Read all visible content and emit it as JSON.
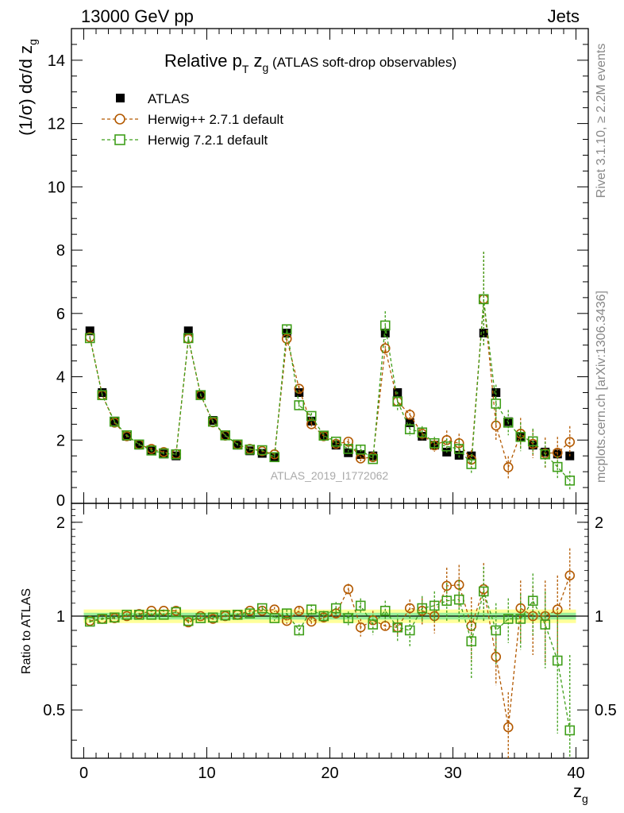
{
  "header": {
    "left": "13000 GeV pp",
    "right": "Jets"
  },
  "side_labels": {
    "rivet": "Rivet 3.1.10, ≥ 2.2M events",
    "mcplots": "mcplots.cern.ch [arXiv:1306.3436]"
  },
  "chart_data": {
    "type": "scatter",
    "title": {
      "main": "Relative p",
      "sub": "T",
      "mid": " z",
      "sub2": "g",
      "rest": " (ATLAS soft-drop observables)"
    },
    "watermark": "ATLAS_2019_I1772062",
    "xlabel": {
      "main": "z",
      "sub": "g"
    },
    "ylabel": {
      "pre": "(1/σ) dσ/d z",
      "sub": "g"
    },
    "ratio_ylabel": "Ratio to ATLAS",
    "xlim": [
      -1,
      41
    ],
    "ylim": [
      0,
      15
    ],
    "ratio_ylim": [
      0.35,
      2.3
    ],
    "x_ticks": [
      0,
      10,
      20,
      30,
      40
    ],
    "y_ticks": [
      0,
      2,
      4,
      6,
      8,
      10,
      12,
      14
    ],
    "ratio_ticks": [
      0.5,
      1,
      2
    ],
    "legend_position": "top-left",
    "legend": [
      {
        "label": "ATLAS",
        "marker": "filled-square",
        "color": "#000000"
      },
      {
        "label": "Herwig++ 2.7.1 default",
        "marker": "open-circle",
        "color": "#b35900"
      },
      {
        "label": "Herwig 7.2.1 default",
        "marker": "open-square",
        "color": "#3f9f1a"
      }
    ],
    "colors": {
      "atlas": "#000000",
      "herwigpp": "#b35900",
      "herwig7": "#3f9f1a",
      "band_outer": "#ffff99",
      "band_inner": "#99ee99"
    },
    "x": [
      0.5,
      1.5,
      2.5,
      3.5,
      4.5,
      5.5,
      6.5,
      7.5,
      8.5,
      9.5,
      10.5,
      11.5,
      12.5,
      13.5,
      14.5,
      15.5,
      16.5,
      17.5,
      18.5,
      19.5,
      20.5,
      21.5,
      22.5,
      23.5,
      24.5,
      25.5,
      26.5,
      27.5,
      28.5,
      29.5,
      30.5,
      31.5,
      32.5,
      33.5,
      34.5,
      35.5,
      36.5,
      37.5,
      38.5,
      39.5
    ],
    "series": [
      {
        "name": "ATLAS",
        "y": [
          5.45,
          3.5,
          2.6,
          2.12,
          1.84,
          1.66,
          1.56,
          1.5,
          5.45,
          3.42,
          2.62,
          2.14,
          1.84,
          1.66,
          1.58,
          1.48,
          5.38,
          3.5,
          2.6,
          2.14,
          1.84,
          1.6,
          1.54,
          1.5,
          5.38,
          3.5,
          2.55,
          2.12,
          1.84,
          1.62,
          1.52,
          1.5,
          5.38,
          3.5,
          2.58,
          2.1,
          1.84,
          1.62,
          1.56,
          1.5
        ],
        "yerr": [
          0.06,
          0.04,
          0.04,
          0.04,
          0.03,
          0.03,
          0.03,
          0.03,
          0.06,
          0.05,
          0.04,
          0.04,
          0.03,
          0.03,
          0.03,
          0.03,
          0.07,
          0.06,
          0.05,
          0.04,
          0.04,
          0.04,
          0.04,
          0.04,
          0.08,
          0.07,
          0.06,
          0.05,
          0.05,
          0.05,
          0.05,
          0.06,
          0.1,
          0.1,
          0.09,
          0.08,
          0.07,
          0.07,
          0.08,
          0.09
        ],
        "band_outer": [
          0.05,
          0.05,
          0.05,
          0.05,
          0.05,
          0.05,
          0.05,
          0.05,
          0.05,
          0.05,
          0.05,
          0.05,
          0.05,
          0.05,
          0.05,
          0.05,
          0.05,
          0.05,
          0.05,
          0.05,
          0.05,
          0.05,
          0.05,
          0.05,
          0.05,
          0.05,
          0.05,
          0.05,
          0.05,
          0.05,
          0.05,
          0.05,
          0.05,
          0.05,
          0.05,
          0.05,
          0.05,
          0.05,
          0.05,
          0.05
        ],
        "band_inner": [
          0.025,
          0.025,
          0.025,
          0.025,
          0.025,
          0.025,
          0.025,
          0.025,
          0.025,
          0.025,
          0.025,
          0.025,
          0.025,
          0.025,
          0.025,
          0.025,
          0.025,
          0.025,
          0.025,
          0.025,
          0.025,
          0.025,
          0.025,
          0.025,
          0.025,
          0.025,
          0.025,
          0.025,
          0.025,
          0.025,
          0.025,
          0.025,
          0.025,
          0.025,
          0.025,
          0.025,
          0.025,
          0.025,
          0.025,
          0.025
        ]
      },
      {
        "name": "Herwig++ 2.7.1 default",
        "y": [
          5.25,
          3.42,
          2.55,
          2.12,
          1.86,
          1.72,
          1.62,
          1.56,
          5.2,
          3.42,
          2.56,
          2.14,
          1.86,
          1.72,
          1.65,
          1.55,
          5.2,
          3.62,
          2.5,
          2.12,
          1.88,
          1.95,
          1.42,
          1.46,
          4.9,
          3.22,
          2.8,
          2.2,
          1.83,
          2.0,
          1.9,
          1.38,
          6.45,
          2.46,
          1.14,
          2.2,
          1.88,
          1.58,
          1.6,
          1.94
        ],
        "yerr": [
          0.04,
          0.04,
          0.04,
          0.04,
          0.04,
          0.04,
          0.04,
          0.04,
          0.05,
          0.05,
          0.05,
          0.04,
          0.04,
          0.04,
          0.04,
          0.05,
          0.1,
          0.1,
          0.08,
          0.08,
          0.08,
          0.09,
          0.09,
          0.1,
          0.2,
          0.16,
          0.18,
          0.2,
          0.2,
          0.3,
          0.3,
          0.3,
          1.5,
          0.5,
          0.35,
          0.5,
          0.45,
          0.5,
          0.5,
          0.5
        ],
        "ratio": [
          0.965,
          0.98,
          0.985,
          1.0,
          1.015,
          1.04,
          1.04,
          1.04,
          0.955,
          1.0,
          0.98,
          1.0,
          1.01,
          1.04,
          1.04,
          1.05,
          0.965,
          1.04,
          0.96,
          0.99,
          1.02,
          1.22,
          0.92,
          0.97,
          0.93,
          0.92,
          1.06,
          1.04,
          1.0,
          1.25,
          1.26,
          0.93,
          1.22,
          0.74,
          0.44,
          1.06,
          1.0,
          1.0,
          1.05,
          1.35
        ],
        "ratio_err": [
          0.01,
          0.01,
          0.01,
          0.01,
          0.01,
          0.01,
          0.01,
          0.01,
          0.01,
          0.01,
          0.01,
          0.01,
          0.01,
          0.01,
          0.02,
          0.02,
          0.02,
          0.03,
          0.03,
          0.04,
          0.04,
          0.05,
          0.06,
          0.07,
          0.04,
          0.05,
          0.07,
          0.1,
          0.12,
          0.18,
          0.2,
          0.22,
          0.26,
          0.14,
          0.13,
          0.24,
          0.25,
          0.3,
          0.3,
          0.3
        ]
      },
      {
        "name": "Herwig 7.2.1 default",
        "y": [
          5.22,
          3.42,
          2.58,
          2.15,
          1.86,
          1.67,
          1.58,
          1.55,
          5.22,
          3.42,
          2.58,
          2.15,
          1.86,
          1.7,
          1.68,
          1.46,
          5.5,
          3.1,
          2.76,
          2.14,
          1.95,
          1.72,
          1.7,
          1.4,
          5.62,
          3.22,
          2.34,
          2.24,
          1.9,
          1.8,
          1.72,
          1.24,
          6.45,
          3.15,
          2.55,
          2.1,
          1.96,
          1.55,
          1.15,
          0.72
        ],
        "yerr": [
          0.04,
          0.04,
          0.04,
          0.04,
          0.04,
          0.04,
          0.04,
          0.04,
          0.05,
          0.05,
          0.05,
          0.04,
          0.04,
          0.04,
          0.04,
          0.05,
          0.15,
          0.15,
          0.1,
          0.1,
          0.1,
          0.1,
          0.12,
          0.12,
          0.45,
          0.3,
          0.2,
          0.2,
          0.2,
          0.25,
          0.3,
          0.3,
          1.5,
          0.6,
          0.4,
          0.45,
          0.4,
          0.4,
          0.35,
          0.3
        ],
        "ratio": [
          0.96,
          0.98,
          0.99,
          1.01,
          1.01,
          1.01,
          1.01,
          1.03,
          0.965,
          0.985,
          0.99,
          1.005,
          1.01,
          1.02,
          1.06,
          0.985,
          1.02,
          0.9,
          1.05,
          1.0,
          1.06,
          0.985,
          1.08,
          0.94,
          1.04,
          0.92,
          0.9,
          1.06,
          1.08,
          1.12,
          1.13,
          0.83,
          1.2,
          0.9,
          0.98,
          0.98,
          1.12,
          0.94,
          0.72,
          0.43
        ],
        "ratio_err": [
          0.01,
          0.01,
          0.01,
          0.01,
          0.01,
          0.01,
          0.01,
          0.01,
          0.01,
          0.01,
          0.01,
          0.01,
          0.01,
          0.01,
          0.02,
          0.02,
          0.03,
          0.04,
          0.04,
          0.04,
          0.05,
          0.05,
          0.06,
          0.07,
          0.08,
          0.09,
          0.1,
          0.1,
          0.12,
          0.16,
          0.18,
          0.2,
          0.24,
          0.2,
          0.16,
          0.2,
          0.25,
          0.26,
          0.3,
          0.32
        ]
      }
    ]
  }
}
